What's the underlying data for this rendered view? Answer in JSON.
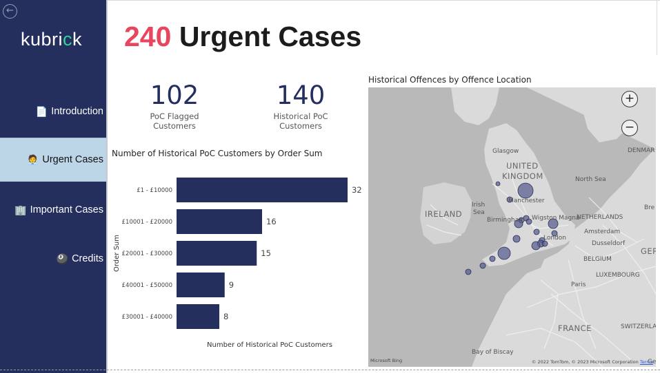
{
  "sidebar": {
    "logo": {
      "text_a": "kubri",
      "text_dot": "c",
      "text_b": "k"
    },
    "back_icon": "arrow-left-circle-icon",
    "items": [
      {
        "label": "Introduction",
        "icon": "📄",
        "active": false
      },
      {
        "label": "Urgent Cases",
        "icon": "🧑‍💼",
        "active": true
      },
      {
        "label": "Important Cases",
        "icon": "🏢",
        "active": false
      },
      {
        "label": "Credits",
        "icon": "🎱",
        "active": false
      }
    ],
    "colors": {
      "background": "#252f5e",
      "active": "#bcd6e8",
      "logo_accent": "#2fd19e"
    }
  },
  "header": {
    "count": "240",
    "title": "Urgent Cases",
    "count_color": "#e8455f"
  },
  "kpis": [
    {
      "value": "102",
      "label": "PoC Flagged Customers"
    },
    {
      "value": "140",
      "label": "Historical PoC Customers"
    }
  ],
  "bar_chart": {
    "title": "Number of Historical PoC Customers by Order Sum"
  },
  "chart_data": {
    "type": "bar",
    "orientation": "horizontal",
    "title": "Number of Historical PoC Customers by Order Sum",
    "xlabel": "Number of Historical PoC Customers",
    "ylabel": "Order Sum",
    "categories": [
      "£1 - £10000",
      "£10001 - £20000",
      "£20001 - £30000",
      "£40001 - £50000",
      "£30001 - £40000"
    ],
    "values": [
      32,
      16,
      15,
      9,
      8
    ],
    "xlim": [
      0,
      33
    ],
    "bar_color": "#252f5e",
    "grid": false
  },
  "map": {
    "title": "Historical Offences by Offence Location",
    "zoom_in_icon": "plus-circle-icon",
    "zoom_out_icon": "minus-circle-icon",
    "labels": {
      "uk": "UNITED",
      "uk2": "KINGDOM",
      "ireland": "IRELAND",
      "irish_sea": "Irish",
      "irish_sea2": "Sea",
      "north_sea": "North Sea",
      "netherlands": "NETHERLANDS",
      "belgium": "BELGIUM",
      "france": "FRANCE",
      "denmark": "DENMAR",
      "germany": "GER",
      "luxembourg": "LUXEMBOURG",
      "switzerland": "SWITZERLAND",
      "glasgow": "Glasgow",
      "manchester": "Manchester",
      "birmingham": "Birmingham",
      "wigston": "Wigston Magna",
      "london": "London",
      "amsterdam": "Amsterdam",
      "dusseldorf": "Dusseldorf",
      "paris": "Paris",
      "bremen": "Bre",
      "ge": "Ge",
      "bay_biscay": "Bay of Biscay"
    },
    "attribution": "© 2022 TomTom, © 2023 Microsoft Corporation",
    "terms": "Terms",
    "bing": "Microsoft Bing",
    "bubble_color": "#5a6090"
  }
}
